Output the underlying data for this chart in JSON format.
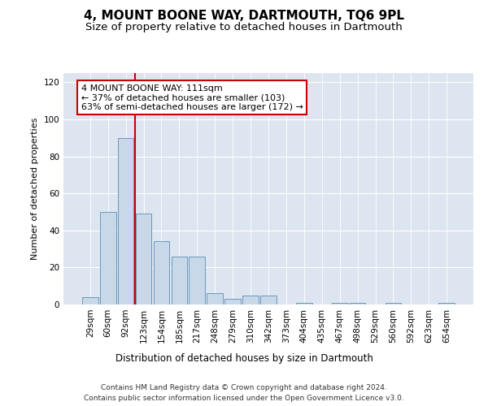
{
  "title": "4, MOUNT BOONE WAY, DARTMOUTH, TQ6 9PL",
  "subtitle": "Size of property relative to detached houses in Dartmouth",
  "xlabel": "Distribution of detached houses by size in Dartmouth",
  "ylabel": "Number of detached properties",
  "categories": [
    "29sqm",
    "60sqm",
    "92sqm",
    "123sqm",
    "154sqm",
    "185sqm",
    "217sqm",
    "248sqm",
    "279sqm",
    "310sqm",
    "342sqm",
    "373sqm",
    "404sqm",
    "435sqm",
    "467sqm",
    "498sqm",
    "529sqm",
    "560sqm",
    "592sqm",
    "623sqm",
    "654sqm"
  ],
  "values": [
    4,
    50,
    90,
    49,
    34,
    26,
    26,
    6,
    3,
    5,
    5,
    0,
    1,
    0,
    1,
    1,
    0,
    1,
    0,
    0,
    1
  ],
  "bar_color": "#c8d8e8",
  "bar_edge_color": "#5b8db8",
  "vline_color": "#cc0000",
  "vline_x_index": 2.5,
  "annotation_text": "4 MOUNT BOONE WAY: 111sqm\n← 37% of detached houses are smaller (103)\n63% of semi-detached houses are larger (172) →",
  "annotation_box_color": "#ffffff",
  "annotation_box_edge": "#cc0000",
  "ylim": [
    0,
    125
  ],
  "yticks": [
    0,
    20,
    40,
    60,
    80,
    100,
    120
  ],
  "background_color": "#dde6f0",
  "footer_line1": "Contains HM Land Registry data © Crown copyright and database right 2024.",
  "footer_line2": "Contains public sector information licensed under the Open Government Licence v3.0.",
  "title_fontsize": 11,
  "subtitle_fontsize": 9.5,
  "xlabel_fontsize": 8.5,
  "ylabel_fontsize": 8,
  "tick_fontsize": 7.5,
  "footer_fontsize": 6.5,
  "annotation_fontsize": 8
}
